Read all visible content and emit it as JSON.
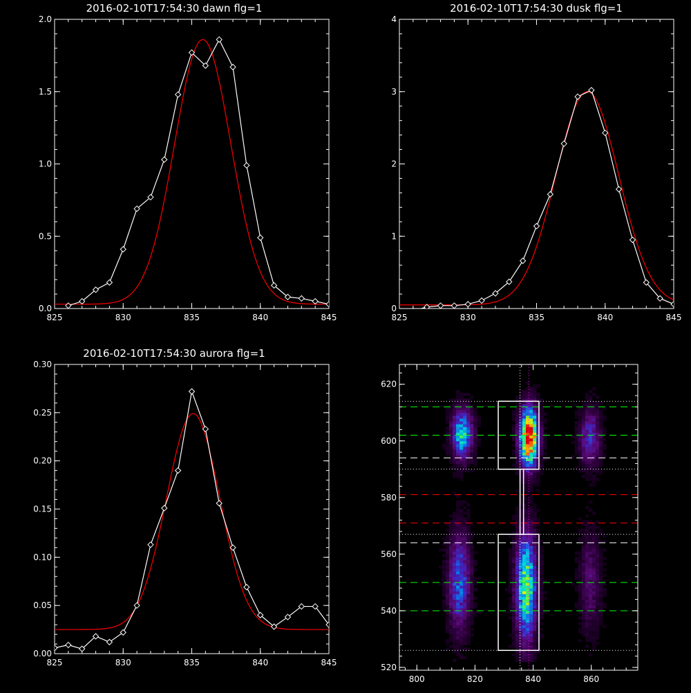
{
  "chart_data": [
    {
      "type": "line",
      "title": "2016-02-10T17:54:30 dawn flg=1",
      "xlim": [
        825,
        845
      ],
      "ylim": [
        0,
        2.0
      ],
      "xticks": [
        "825",
        "830",
        "835",
        "840",
        "845"
      ],
      "yticks": [
        "0.0",
        "0.5",
        "1.0",
        "1.5",
        "2.0"
      ],
      "series": [
        {
          "color": "#ffffff",
          "markers": "diamond",
          "x": [
            826,
            827,
            828,
            829,
            830,
            831,
            832,
            833,
            834,
            835,
            836,
            837,
            838,
            839,
            840,
            841,
            842,
            843,
            844,
            845
          ],
          "y": [
            0.02,
            0.05,
            0.13,
            0.18,
            0.41,
            0.69,
            0.77,
            1.03,
            1.48,
            1.77,
            1.68,
            1.86,
            1.67,
            0.99,
            0.49,
            0.16,
            0.08,
            0.07,
            0.05,
            0.03
          ]
        },
        {
          "color": "#ff0000",
          "model": "gauss",
          "center": 835.8,
          "sigma": 2.05,
          "amplitude": 1.83,
          "offset": 0.03
        }
      ]
    },
    {
      "type": "line",
      "title": "2016-02-10T17:54:30 dusk flg=1",
      "xlim": [
        825,
        845
      ],
      "ylim": [
        0,
        4
      ],
      "xticks": [
        "825",
        "830",
        "835",
        "840",
        "845"
      ],
      "yticks": [
        "0",
        "1",
        "2",
        "3",
        "4"
      ],
      "series": [
        {
          "color": "#ffffff",
          "markers": "diamond",
          "x": [
            826,
            827,
            828,
            829,
            830,
            831,
            832,
            833,
            834,
            835,
            836,
            837,
            838,
            839,
            840,
            841,
            842,
            843,
            844,
            845
          ],
          "y": [
            -0.03,
            0.02,
            0.04,
            0.04,
            0.06,
            0.11,
            0.21,
            0.37,
            0.66,
            1.14,
            1.58,
            2.28,
            2.93,
            3.02,
            2.43,
            1.65,
            0.95,
            0.36,
            0.14,
            0.06
          ]
        },
        {
          "color": "#ff0000",
          "model": "gauss",
          "center": 838.7,
          "sigma": 2.3,
          "amplitude": 2.95,
          "offset": 0.05
        }
      ]
    },
    {
      "type": "line",
      "title": "2016-02-10T17:54:30 aurora flg=1",
      "xlim": [
        825,
        845
      ],
      "ylim": [
        0,
        0.3
      ],
      "xticks": [
        "825",
        "830",
        "835",
        "840",
        "845"
      ],
      "yticks": [
        "0.00",
        "0.05",
        "0.10",
        "0.15",
        "0.20",
        "0.25",
        "0.30"
      ],
      "series": [
        {
          "color": "#ffffff",
          "markers": "diamond",
          "x": [
            825,
            826,
            827,
            828,
            829,
            830,
            831,
            832,
            833,
            834,
            835,
            836,
            837,
            838,
            839,
            840,
            841,
            842,
            843,
            844,
            845
          ],
          "y": [
            0.006,
            0.009,
            0.005,
            0.018,
            0.012,
            0.022,
            0.05,
            0.113,
            0.151,
            0.19,
            0.272,
            0.233,
            0.156,
            0.11,
            0.069,
            0.04,
            0.028,
            0.038,
            0.049,
            0.049,
            0.03
          ]
        },
        {
          "color": "#ff0000",
          "model": "gauss",
          "center": 835.1,
          "sigma": 1.95,
          "amplitude": 0.224,
          "offset": 0.025
        }
      ]
    },
    {
      "type": "heatmap",
      "title": "",
      "xlim": [
        794,
        876
      ],
      "ylim": [
        519,
        627
      ],
      "xticks": [
        "800",
        "820",
        "840",
        "860"
      ],
      "yticks": [
        "520",
        "540",
        "560",
        "580",
        "600",
        "620"
      ],
      "colormap": [
        "#000000",
        "#2a0038",
        "#5a0a78",
        "#3c28c8",
        "#0a78e6",
        "#00dcdc",
        "#50f050",
        "#f0f000",
        "#ff6400",
        "#dc0000"
      ],
      "blobs": [
        {
          "x": 815,
          "y": 602,
          "sx": 2.4,
          "sy": 6,
          "amp": 0.55
        },
        {
          "x": 814,
          "y": 550,
          "sx": 2.6,
          "sy": 12,
          "amp": 0.38
        },
        {
          "x": 838,
          "y": 601,
          "sx": 2.2,
          "sy": 7,
          "amp": 1.0
        },
        {
          "x": 837,
          "y": 548,
          "sx": 2.4,
          "sy": 13,
          "amp": 0.65
        },
        {
          "x": 859,
          "y": 601,
          "sx": 2.5,
          "sy": 7,
          "amp": 0.3
        },
        {
          "x": 859,
          "y": 550,
          "sx": 2.6,
          "sy": 12,
          "amp": 0.18
        }
      ],
      "hlines": [
        {
          "y": 614,
          "color": "#ffffff",
          "style": "dotted"
        },
        {
          "y": 612,
          "color": "#00ff00",
          "style": "dashed"
        },
        {
          "y": 602,
          "color": "#00ff00",
          "style": "dashed"
        },
        {
          "y": 594,
          "color": "#ffffff",
          "style": "dashed"
        },
        {
          "y": 590,
          "color": "#ffffff",
          "style": "dotted"
        },
        {
          "y": 581,
          "color": "#ff0000",
          "style": "dashed"
        },
        {
          "y": 571,
          "color": "#ff0000",
          "style": "dashed"
        },
        {
          "y": 567,
          "color": "#ffffff",
          "style": "dotted"
        },
        {
          "y": 564,
          "color": "#ffffff",
          "style": "dashed"
        },
        {
          "y": 550,
          "color": "#00ff00",
          "style": "dashed"
        },
        {
          "y": 540,
          "color": "#00ff00",
          "style": "dashed"
        },
        {
          "y": 526,
          "color": "#ffffff",
          "style": "dotted"
        }
      ],
      "vlines": [
        {
          "x": 835.5,
          "color": "#ffffff",
          "style": "dotted"
        },
        {
          "x": 838.5,
          "color": "#ff00ff",
          "style": "dotted"
        }
      ],
      "boxes": [
        {
          "x": [
            828,
            842
          ],
          "y": [
            590,
            614
          ]
        },
        {
          "x": [
            828,
            842
          ],
          "y": [
            526,
            567
          ]
        },
        {
          "x": [
            835.5,
            836.7
          ],
          "y": [
            567,
            590
          ]
        }
      ]
    }
  ]
}
